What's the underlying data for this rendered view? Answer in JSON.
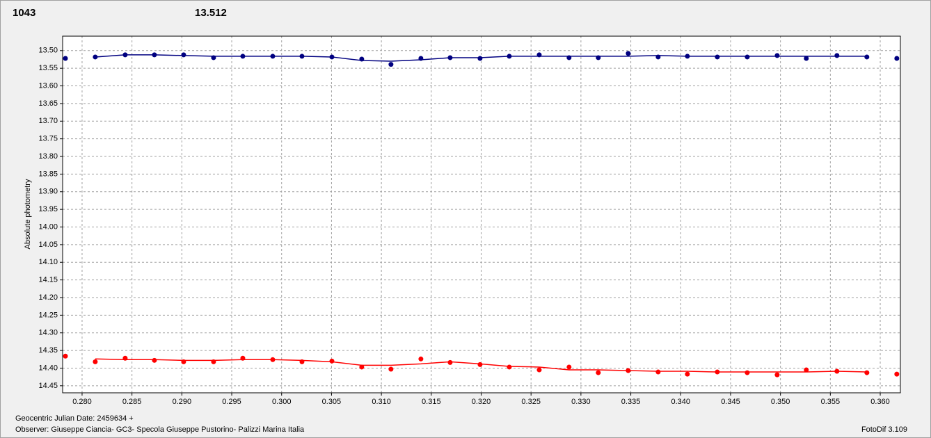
{
  "chart_data": {
    "type": "scatter",
    "y_label": "Absolute photometry",
    "x_label": "Geocentric Julian Date: 2459634 +",
    "observer": "Observer: Giuseppe Ciancia- GC3- Specola Giuseppe Pustorino- Palizzi Marina Italia",
    "software": "FotoDif 3.109",
    "header_labels": [
      {
        "text": "1043",
        "color": "#ff0000"
      },
      {
        "text": "13.512",
        "color": "#000080"
      }
    ],
    "xlim": [
      0.27805,
      0.36202
    ],
    "ylim": [
      13.459,
      14.47
    ],
    "y_inverted": true,
    "grid": true,
    "xticks": [
      {
        "value": 0.28,
        "label": "0.280"
      },
      0.285,
      {
        "value": 0.29,
        "label": "0.290"
      },
      0.295,
      {
        "value": 0.3,
        "label": "0.300"
      },
      0.305,
      {
        "value": 0.31,
        "label": "0.310"
      },
      0.315,
      {
        "value": 0.32,
        "label": "0.320"
      },
      0.325,
      {
        "value": 0.33,
        "label": "0.330"
      },
      0.335,
      {
        "value": 0.34,
        "label": "0.340"
      },
      0.345,
      {
        "value": 0.35,
        "label": "0.350"
      },
      0.355,
      {
        "value": 0.36,
        "label": "0.360"
      }
    ],
    "yticks": [
      {
        "value": 13.5,
        "label": "13.50"
      },
      13.55,
      {
        "value": 13.6,
        "label": "13.60"
      },
      13.65,
      {
        "value": 13.7,
        "label": "13.70"
      },
      13.75,
      {
        "value": 13.8,
        "label": "13.80"
      },
      13.85,
      {
        "value": 13.9,
        "label": "13.90"
      },
      13.95,
      {
        "value": 14,
        "label": "14.00"
      },
      14.05,
      {
        "value": 14.1,
        "label": "14.10"
      },
      14.15,
      {
        "value": 14.2,
        "label": "14.20"
      },
      14.25,
      {
        "value": 14.3,
        "label": "14.30"
      },
      14.35,
      {
        "value": 14.4,
        "label": "14.40"
      },
      14.45
    ],
    "x": [
      0.27833,
      0.28132,
      0.28432,
      0.28725,
      0.29018,
      0.29318,
      0.29611,
      0.29911,
      0.30204,
      0.30504,
      0.30803,
      0.31096,
      0.31396,
      0.31689,
      0.31989,
      0.32282,
      0.32582,
      0.32881,
      0.33174,
      0.33474,
      0.33774,
      0.34067,
      0.34367,
      0.34667,
      0.34967,
      0.35259,
      0.35566,
      0.35866,
      0.36166
    ],
    "series": [
      {
        "style": "markers",
        "color": "#000080",
        "values": [
          13.522,
          13.518,
          13.512,
          13.512,
          13.512,
          13.52,
          13.516,
          13.516,
          13.516,
          13.518,
          13.524,
          13.539,
          13.522,
          13.52,
          13.522,
          13.516,
          13.512,
          13.52,
          13.52,
          13.508,
          13.518,
          13.516,
          13.518,
          13.518,
          13.514,
          13.522,
          13.514,
          13.518,
          13.522
        ]
      },
      {
        "style": "line",
        "color": "#000080",
        "values": [
          null,
          13.518,
          13.512,
          13.512,
          13.514,
          13.516,
          13.516,
          13.516,
          13.516,
          13.518,
          13.528,
          13.53,
          13.526,
          13.52,
          13.52,
          13.516,
          13.516,
          13.516,
          13.516,
          13.516,
          13.514,
          13.516,
          13.516,
          13.516,
          13.516,
          13.516,
          13.516,
          13.516,
          null
        ]
      },
      {
        "style": "markers",
        "color": "#ff0000",
        "values": [
          14.366,
          14.382,
          14.372,
          14.378,
          14.382,
          14.382,
          14.372,
          14.376,
          14.382,
          14.38,
          14.397,
          14.403,
          14.374,
          14.384,
          14.39,
          14.397,
          14.405,
          14.397,
          14.413,
          14.407,
          14.411,
          14.417,
          14.411,
          14.413,
          14.419,
          14.405,
          14.409,
          14.413,
          14.417
        ]
      },
      {
        "style": "line",
        "color": "#ff0000",
        "values": [
          null,
          14.374,
          14.376,
          14.376,
          14.378,
          14.378,
          14.376,
          14.376,
          14.378,
          14.382,
          14.392,
          14.392,
          14.388,
          14.382,
          14.388,
          14.395,
          14.397,
          14.405,
          14.405,
          14.407,
          14.409,
          14.409,
          14.411,
          14.411,
          14.411,
          14.411,
          14.409,
          14.411,
          null
        ]
      }
    ]
  }
}
